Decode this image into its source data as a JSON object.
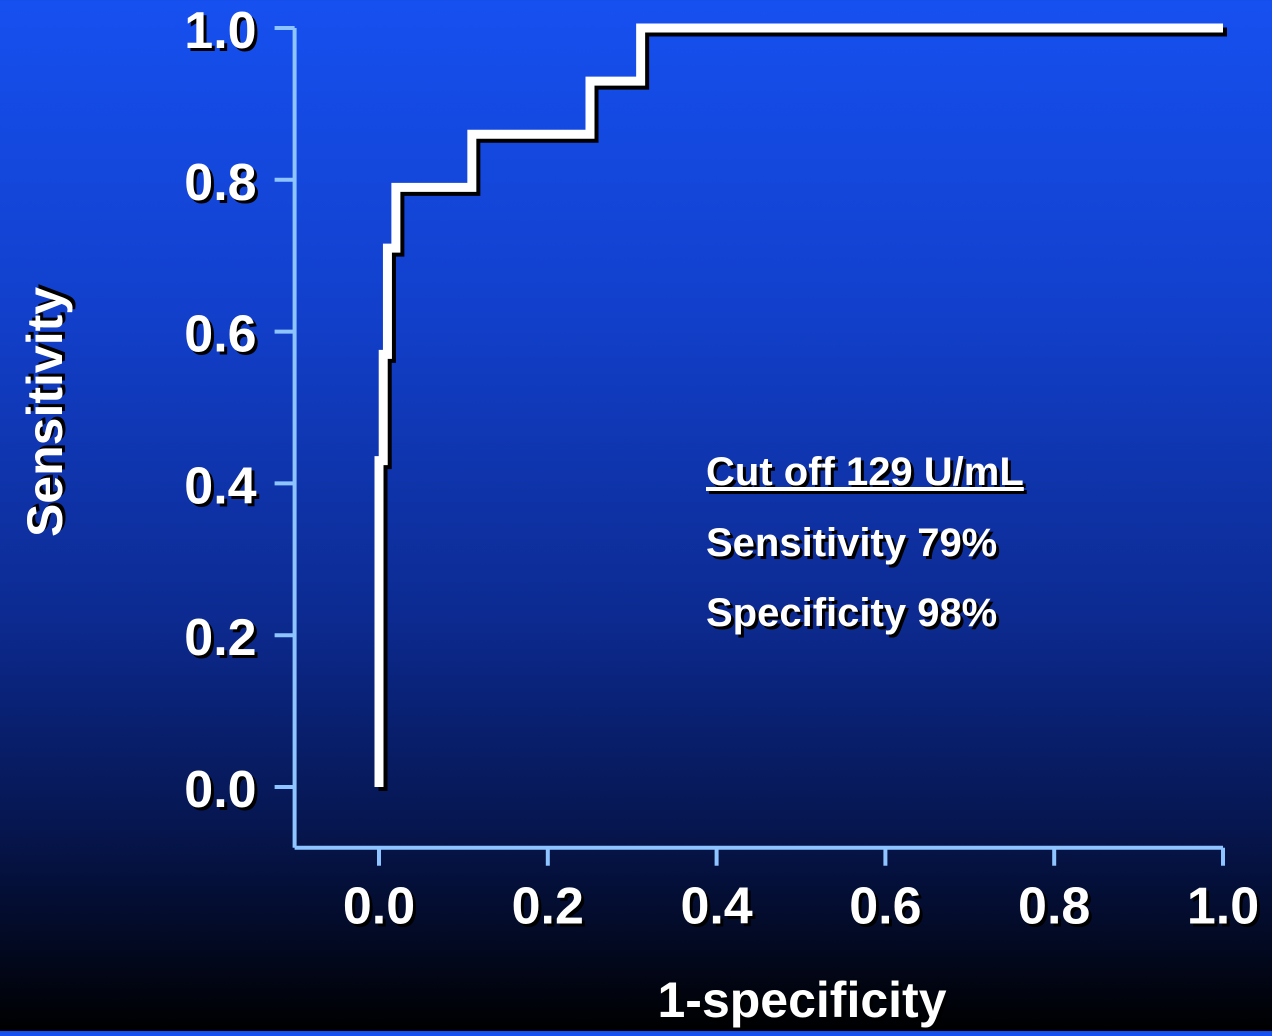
{
  "chart_data": {
    "type": "line",
    "title": "",
    "xlabel": "1-specificity",
    "ylabel": "Sensitivity",
    "xlim": [
      -0.1,
      1.0
    ],
    "ylim": [
      -0.08,
      1.0
    ],
    "x_ticks": [
      0.0,
      0.2,
      0.4,
      0.6,
      0.8,
      1.0
    ],
    "x_tick_labels": [
      "0.0",
      "0.2",
      "0.4",
      "0.6",
      "0.8",
      "1.0"
    ],
    "y_ticks": [
      0.0,
      0.2,
      0.4,
      0.6,
      0.8,
      1.0
    ],
    "y_tick_labels": [
      "0.0",
      "0.2",
      "0.4",
      "0.6",
      "0.8",
      "1.0"
    ],
    "grid": false,
    "series": [
      {
        "x": [
          0.0,
          0.0,
          0.005,
          0.005,
          0.01,
          0.01,
          0.02,
          0.02,
          0.11,
          0.11,
          0.25,
          0.25,
          0.31,
          0.31,
          1.0
        ],
        "y": [
          0.0,
          0.43,
          0.43,
          0.57,
          0.57,
          0.71,
          0.71,
          0.79,
          0.79,
          0.86,
          0.86,
          0.93,
          0.93,
          1.0,
          1.0
        ]
      }
    ],
    "annotations": {
      "heading": "Cut off 129 U/mL",
      "line1": "Sensitivity 79%",
      "line2": "Specificity 98%"
    },
    "colors": {
      "curve": "#ffffff",
      "axis": "#8ec4ff",
      "text": "#ffffff",
      "shadow": "#000000"
    }
  }
}
